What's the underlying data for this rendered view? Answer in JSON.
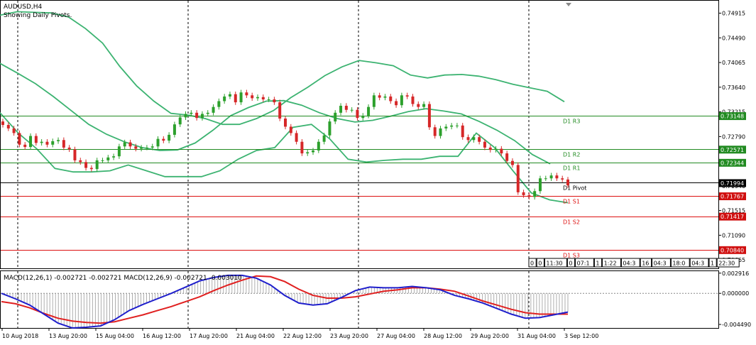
{
  "header": {
    "symbol": "AUDUSD,H4",
    "subtitle": "Showing Daily Pivots."
  },
  "colors": {
    "bull": "#2ca02c",
    "bear": "#d62728",
    "bands": "#3cb371",
    "green_level": "#228b22",
    "red_level": "#dd1111",
    "black_level": "#000000",
    "macd_main": "#1f1fcc",
    "macd_signal": "#e02020",
    "hist": "#9a9a9a",
    "badge_green": "#228b22",
    "badge_red": "#d01010",
    "badge_black": "#000000"
  },
  "chart_data": [
    {
      "type": "candlestick",
      "title": "AUDUSD,H4",
      "ylim": [
        0.7052,
        0.7513
      ],
      "price_ticks": [
        "0.74915",
        "0.74490",
        "0.74065",
        "0.73640",
        "0.73215",
        "0.72790",
        "0.72365",
        "0.71940",
        "0.71515",
        "0.71090",
        "0.70665"
      ],
      "x_ticks": [
        "10 Aug 2018",
        "13 Aug 20:00",
        "15 Aug 04:00",
        "16 Aug 12:00",
        "17 Aug 20:00",
        "21 Aug 04:00",
        "22 Aug 12:00",
        "23 Aug 20:00",
        "27 Aug 04:00",
        "28 Aug 12:00",
        "29 Aug 20:00",
        "31 Aug 04:00",
        "3 Sep 12:00"
      ],
      "closes": [
        0.7299,
        0.7293,
        0.7285,
        0.7265,
        0.7261,
        0.728,
        0.7268,
        0.727,
        0.7265,
        0.7271,
        0.7273,
        0.726,
        0.7257,
        0.7238,
        0.7235,
        0.7225,
        0.7223,
        0.7238,
        0.7238,
        0.7243,
        0.7245,
        0.7262,
        0.7269,
        0.7262,
        0.7258,
        0.726,
        0.726,
        0.7262,
        0.7275,
        0.7272,
        0.7282,
        0.73,
        0.7312,
        0.7318,
        0.732,
        0.7311,
        0.7318,
        0.732,
        0.733,
        0.734,
        0.7348,
        0.7352,
        0.7338,
        0.7355,
        0.735,
        0.7345,
        0.7347,
        0.7343,
        0.7343,
        0.7338,
        0.731,
        0.7296,
        0.7285,
        0.727,
        0.725,
        0.7252,
        0.7255,
        0.727,
        0.7281,
        0.7305,
        0.732,
        0.7332,
        0.7325,
        0.7325,
        0.7311,
        0.7315,
        0.733,
        0.735,
        0.7346,
        0.7348,
        0.734,
        0.7333,
        0.735,
        0.7348,
        0.7335,
        0.733,
        0.7335,
        0.7295,
        0.728,
        0.7293,
        0.7296,
        0.7298,
        0.7298,
        0.7278,
        0.7273,
        0.7278,
        0.727,
        0.726,
        0.7256,
        0.7258,
        0.725,
        0.7237,
        0.723,
        0.7183,
        0.7178,
        0.7175,
        0.7185,
        0.7207,
        0.7207,
        0.7212,
        0.7207,
        0.7205,
        0.7195
      ],
      "levels": [
        {
          "name": "D1  R3",
          "value": 0.73148,
          "badge": "0.73148",
          "kind": "green"
        },
        {
          "name": "D1  R2",
          "value": 0.72571,
          "badge": "0.72571",
          "kind": "green"
        },
        {
          "name": "D1  R1",
          "value": 0.72344,
          "badge": "0.72344",
          "kind": "green"
        },
        {
          "name": "D1  Pivot",
          "value": 0.71994,
          "badge": "0.71994",
          "kind": "black"
        },
        {
          "name": "D1  S1",
          "value": 0.71767,
          "badge": "0.71767",
          "kind": "red"
        },
        {
          "name": "D1  S2",
          "value": 0.71417,
          "badge": "0.71417",
          "kind": "red"
        },
        {
          "name": "D1  S3",
          "value": 0.7084,
          "badge": "0.70840",
          "kind": "red"
        }
      ],
      "bands_upper": [
        0.7488,
        0.7494,
        0.7493,
        0.7492,
        0.7485,
        0.7465,
        0.744,
        0.74,
        0.7366,
        0.734,
        0.7319,
        0.7316,
        0.731,
        0.73,
        0.73,
        0.731,
        0.7324,
        0.7346,
        0.7364,
        0.7384,
        0.7399,
        0.741,
        0.7406,
        0.7401,
        0.7385,
        0.738,
        0.7385,
        0.7386,
        0.7383,
        0.7377,
        0.7369,
        0.7363,
        0.7357,
        0.7339
      ],
      "bands_middle": [
        0.7405,
        0.7388,
        0.737,
        0.7348,
        0.7324,
        0.73,
        0.7283,
        0.727,
        0.726,
        0.7255,
        0.7256,
        0.7268,
        0.729,
        0.7315,
        0.7329,
        0.734,
        0.7341,
        0.7333,
        0.732,
        0.731,
        0.7304,
        0.7307,
        0.7314,
        0.7322,
        0.7327,
        0.7323,
        0.7318,
        0.7305,
        0.729,
        0.7272,
        0.7248,
        0.7232
      ],
      "bands_lower": [
        0.732,
        0.7285,
        0.7258,
        0.7224,
        0.7218,
        0.7218,
        0.722,
        0.723,
        0.722,
        0.721,
        0.721,
        0.721,
        0.722,
        0.724,
        0.7255,
        0.726,
        0.7295,
        0.73,
        0.7275,
        0.724,
        0.7235,
        0.7238,
        0.724,
        0.724,
        0.7245,
        0.7245,
        0.7285,
        0.726,
        0.722,
        0.7182,
        0.717,
        0.7165
      ]
    },
    {
      "type": "line",
      "title": "MACD(12,26,1) -0.002721 -0.002721 MACD(12,26,9) -0.002721 -0.003010",
      "ylim": [
        -0.005,
        0.0032
      ],
      "ticks": [
        "0.002916",
        "0.000000",
        "-0.004490"
      ],
      "series": [
        {
          "values": [
            -0.0,
            -0.0008,
            -0.0017,
            -0.003,
            -0.0043,
            -0.005,
            -0.0049,
            -0.0047,
            -0.0038,
            -0.0025,
            -0.0016,
            -0.0008,
            0.0,
            0.0009,
            0.0018,
            0.0023,
            0.0026,
            0.0026,
            0.0022,
            0.0012,
            -0.0003,
            -0.0014,
            -0.0017,
            -0.0015,
            -0.0006,
            0.0004,
            0.0009,
            0.0008,
            0.0008,
            0.001,
            0.0008,
            0.0005,
            -0.0003,
            -0.0008,
            -0.0014,
            -0.0022,
            -0.003,
            -0.0036,
            -0.0035,
            -0.0031,
            -0.0027
          ]
        },
        {
          "values": [
            -0.0012,
            -0.0015,
            -0.0021,
            -0.0029,
            -0.0036,
            -0.004,
            -0.0042,
            -0.0043,
            -0.0041,
            -0.0036,
            -0.0031,
            -0.0025,
            -0.0019,
            -0.0012,
            -0.0005,
            0.0004,
            0.0012,
            0.0019,
            0.0025,
            0.0024,
            0.0017,
            0.0006,
            -0.0003,
            -0.0007,
            -0.0007,
            -0.0005,
            -0.0001,
            0.0003,
            0.0005,
            0.0008,
            0.0008,
            0.0006,
            0.0003,
            -0.0004,
            -0.0011,
            -0.0017,
            -0.0023,
            -0.0028,
            -0.003,
            -0.003,
            -0.003
          ]
        }
      ]
    }
  ],
  "time_boxes": [
    "0",
    "0",
    "11:30",
    "0",
    "07:1",
    "1",
    "1:22",
    "04:3",
    "16",
    "04:3",
    "18:0",
    "04:3",
    "1",
    "22:30"
  ]
}
